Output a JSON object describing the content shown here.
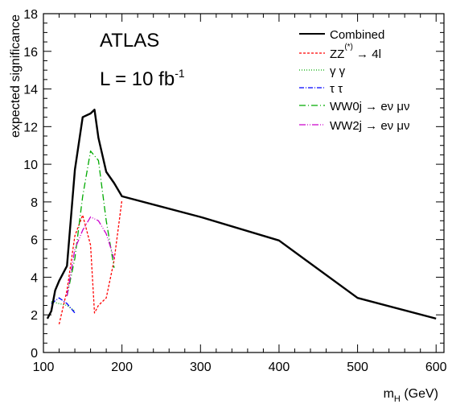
{
  "chart_data": {
    "type": "line",
    "annotations": {
      "experiment": "ATLAS",
      "luminosity_prefix": "L = 10 fb",
      "luminosity_superscript": "-1"
    },
    "xlabel": "m",
    "xlabel_subscript": "H",
    "xlabel_unit": " (GeV)",
    "ylabel": "expected significance",
    "xlim": [
      100,
      610
    ],
    "ylim": [
      0,
      18
    ],
    "x_ticks": [
      100,
      200,
      300,
      400,
      500,
      600
    ],
    "y_ticks": [
      0,
      2,
      4,
      6,
      8,
      10,
      12,
      14,
      16,
      18
    ],
    "grid": false,
    "legend_position": "top-right",
    "series": [
      {
        "name": "Combined",
        "legend_label": "Combined",
        "color": "#000000",
        "dash": "",
        "width": 2.4,
        "x": [
          105,
          110,
          115,
          120,
          130,
          140,
          150,
          160,
          165,
          170,
          180,
          190,
          200,
          300,
          400,
          500,
          600
        ],
        "y": [
          1.8,
          2.2,
          3.3,
          3.8,
          4.6,
          9.7,
          12.5,
          12.7,
          12.9,
          11.4,
          9.6,
          9.0,
          8.3,
          7.2,
          5.95,
          2.9,
          1.8
        ]
      },
      {
        "name": "ZZ(*) → 4l",
        "legend_label": "ZZ",
        "legend_sup": "(*)",
        "legend_suffix": " → 4l",
        "color": "#ff0000",
        "dash": "3,2",
        "width": 1.3,
        "x": [
          120,
          130,
          140,
          150,
          160,
          165,
          170,
          180,
          190,
          200
        ],
        "y": [
          1.5,
          3.3,
          6.2,
          7.3,
          5.7,
          2.1,
          2.5,
          2.9,
          4.9,
          8.1
        ]
      },
      {
        "name": "γ γ",
        "legend_label": "γ γ",
        "color": "#00aa00",
        "dash": "1,2",
        "width": 1.3,
        "x": [
          110,
          120,
          130,
          140
        ],
        "y": [
          2.7,
          2.6,
          2.5,
          2.2
        ]
      },
      {
        "name": "τ τ",
        "legend_label": "τ τ",
        "color": "#0000ff",
        "dash": "6,2,1,2",
        "width": 1.3,
        "x": [
          110,
          120,
          130,
          140
        ],
        "y": [
          2.6,
          2.9,
          2.6,
          2.1
        ]
      },
      {
        "name": "WW0j → eν μν",
        "legend_label": "WW0j → eν μν",
        "color": "#00aa00",
        "dash": "8,3,1,3",
        "width": 1.3,
        "x": [
          130,
          140,
          150,
          160,
          170,
          180,
          190
        ],
        "y": [
          3.0,
          5.0,
          8.3,
          10.7,
          10.2,
          7.0,
          4.5
        ]
      },
      {
        "name": "WW2j → eν μν",
        "legend_label": "WW2j → eν μν",
        "color": "#cc00cc",
        "dash": "8,2,1,2,1,2",
        "width": 1.3,
        "x": [
          130,
          140,
          150,
          160,
          170,
          180,
          190
        ],
        "y": [
          3.0,
          5.5,
          6.5,
          7.2,
          7.0,
          6.3,
          5.0
        ]
      }
    ]
  }
}
